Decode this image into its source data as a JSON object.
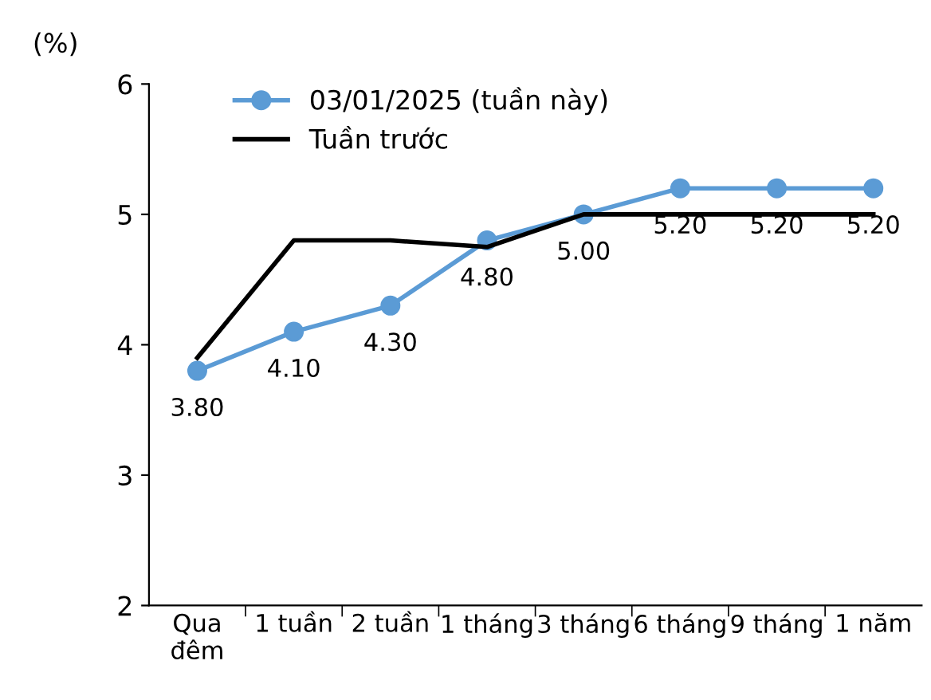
{
  "chart_data": {
    "type": "line",
    "ylabel": "(%)",
    "categories": [
      "Qua\nđêm",
      "1 tuần",
      "2 tuần",
      "1 tháng",
      "3 tháng",
      "6 tháng",
      "9 tháng",
      "1 năm"
    ],
    "series": [
      {
        "name": "03/01/2025 (tuần này)",
        "color": "#5b9bd5",
        "marker": "circle",
        "values": [
          3.8,
          4.1,
          4.3,
          4.8,
          5.0,
          5.2,
          5.2,
          5.2
        ],
        "value_labels": [
          "3.80",
          "4.10",
          "4.30",
          "4.80",
          "5.00",
          "5.20",
          "5.20",
          "5.20"
        ]
      },
      {
        "name": "Tuần trước",
        "color": "#000000",
        "marker": "none",
        "values": [
          3.9,
          4.8,
          4.8,
          4.75,
          5.0,
          5.0,
          5.0,
          5.0
        ]
      }
    ],
    "ylim": [
      2,
      6
    ],
    "yticks": [
      2,
      3,
      4,
      5,
      6
    ],
    "grid": false,
    "legend": "top left"
  }
}
